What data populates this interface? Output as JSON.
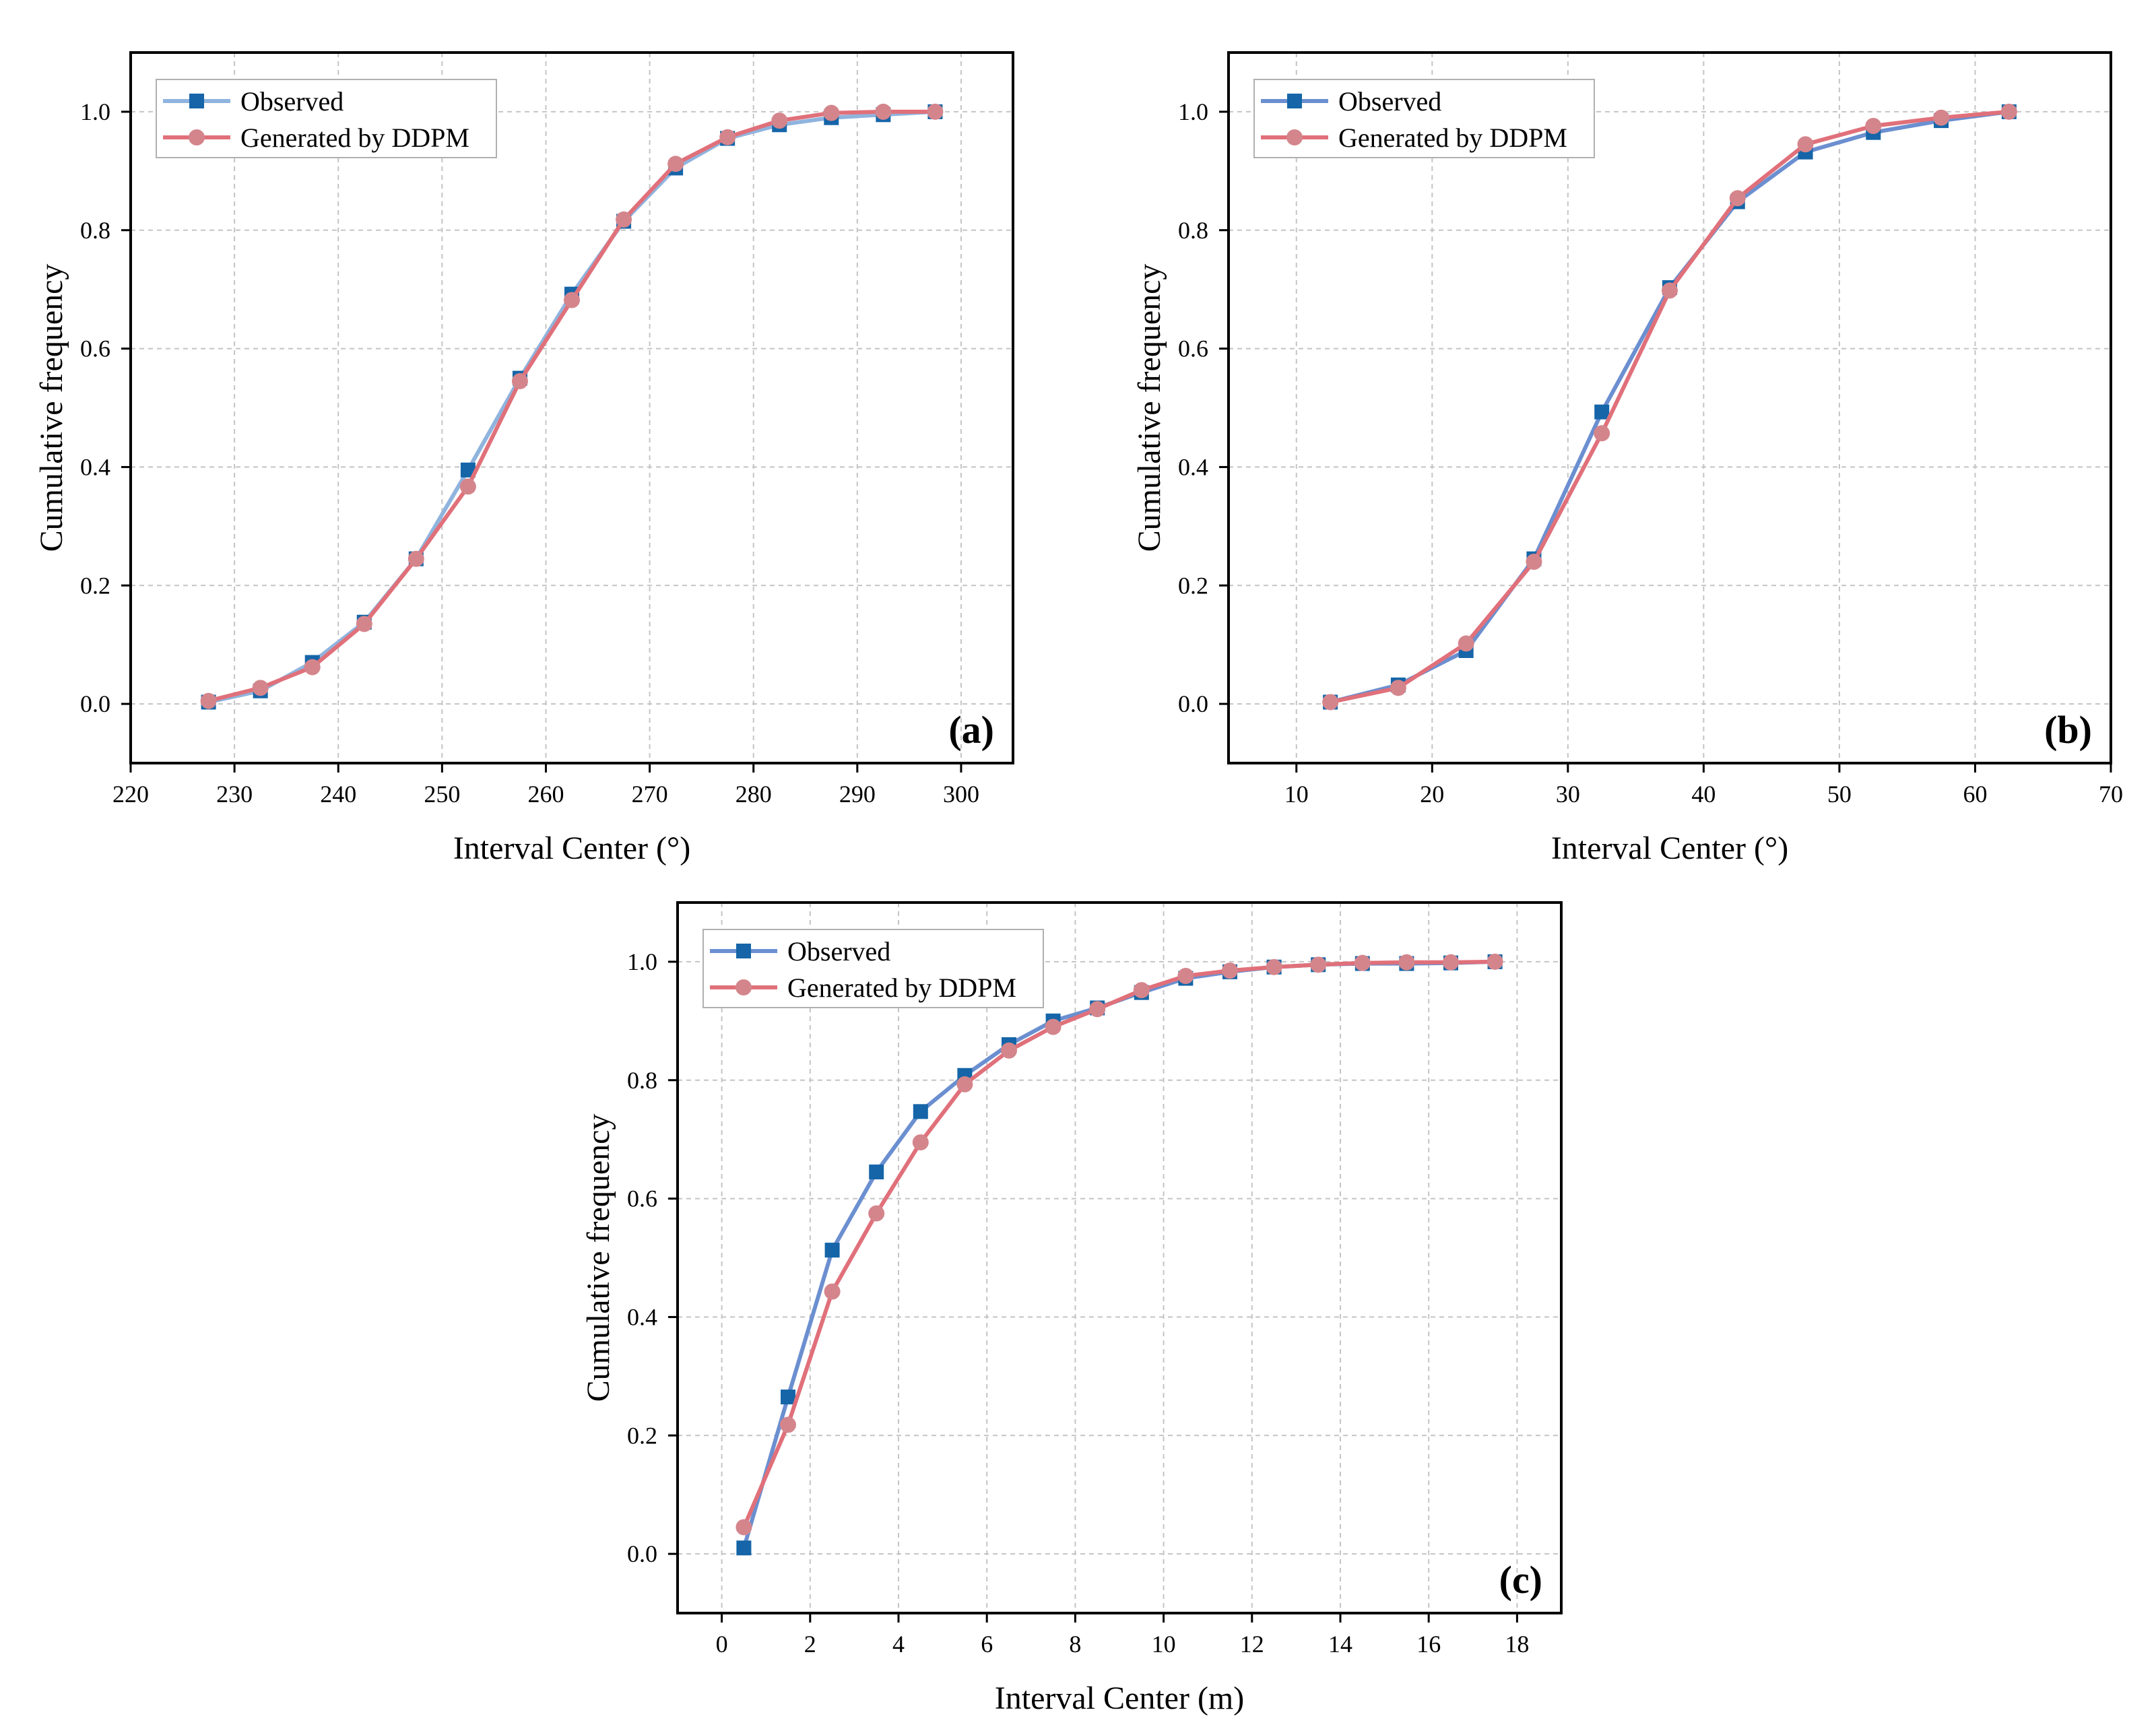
{
  "colors": {
    "observed_line_a": "#8fb4de",
    "observed_line": "#6b8fd0",
    "observed_marker": "#1565a8",
    "generated_line": "#e0707a",
    "generated_marker": "#d4858c"
  },
  "chart_data": [
    {
      "id": "a",
      "type": "line",
      "panel_label": "(a)",
      "xlabel": "Interval Center (°)",
      "ylabel": "Cumulative frequency",
      "xlim": [
        220,
        305
      ],
      "ylim": [
        -0.1,
        1.1
      ],
      "xticks": [
        220,
        230,
        240,
        250,
        260,
        270,
        280,
        290,
        300
      ],
      "xtick_labels": [
        "220",
        "230",
        "240",
        "250",
        "260",
        "270",
        "280",
        "290",
        "300"
      ],
      "yticks": [
        0,
        0.2,
        0.4,
        0.6,
        0.8,
        1.0
      ],
      "ytick_labels": [
        "0.0",
        "0.2",
        "0.4",
        "0.6",
        "0.8",
        "1.0"
      ],
      "grid": true,
      "legend": "top-left",
      "x": [
        227.5,
        232.5,
        237.5,
        242.5,
        247.5,
        252.5,
        257.5,
        262.5,
        267.5,
        272.5,
        277.5,
        282.5,
        287.5,
        292.5,
        297.5
      ],
      "series": [
        {
          "name": "Observed",
          "marker": "square",
          "values": [
            0.003,
            0.022,
            0.07,
            0.138,
            0.245,
            0.395,
            0.55,
            0.692,
            0.815,
            0.905,
            0.955,
            0.978,
            0.99,
            0.995,
            1.0
          ]
        },
        {
          "name": "Generated by DDPM",
          "marker": "circle",
          "values": [
            0.005,
            0.027,
            0.062,
            0.135,
            0.245,
            0.367,
            0.545,
            0.682,
            0.818,
            0.912,
            0.957,
            0.985,
            0.998,
            1.0,
            1.0
          ]
        }
      ]
    },
    {
      "id": "b",
      "type": "line",
      "panel_label": "(b)",
      "xlabel": "Interval Center (°)",
      "ylabel": "Cumulative frequency",
      "xlim": [
        5,
        70
      ],
      "ylim": [
        -0.1,
        1.1
      ],
      "xticks": [
        10,
        20,
        30,
        40,
        50,
        60,
        70
      ],
      "xtick_labels": [
        "10",
        "20",
        "30",
        "40",
        "50",
        "60",
        "70"
      ],
      "yticks": [
        0,
        0.2,
        0.4,
        0.6,
        0.8,
        1.0
      ],
      "ytick_labels": [
        "0.0",
        "0.2",
        "0.4",
        "0.6",
        "0.8",
        "1.0"
      ],
      "grid": true,
      "legend": "top-left",
      "x": [
        12.5,
        17.5,
        22.5,
        27.5,
        32.5,
        37.5,
        42.5,
        47.5,
        52.5,
        57.5,
        62.5
      ],
      "series": [
        {
          "name": "Observed",
          "marker": "square",
          "values": [
            0.003,
            0.032,
            0.09,
            0.245,
            0.493,
            0.703,
            0.848,
            0.932,
            0.965,
            0.985,
            1.0
          ]
        },
        {
          "name": "Generated by DDPM",
          "marker": "circle",
          "values": [
            0.003,
            0.027,
            0.102,
            0.24,
            0.457,
            0.698,
            0.854,
            0.945,
            0.976,
            0.99,
            1.0
          ]
        }
      ]
    },
    {
      "id": "c",
      "type": "line",
      "panel_label": "(c)",
      "xlabel": "Interval Center (m)",
      "ylabel": "Cumulative frequency",
      "xlim": [
        -1,
        19
      ],
      "ylim": [
        -0.1,
        1.1
      ],
      "xticks": [
        0,
        2,
        4,
        6,
        8,
        10,
        12,
        14,
        16,
        18
      ],
      "xtick_labels": [
        "0",
        "2",
        "4",
        "6",
        "8",
        "10",
        "12",
        "14",
        "16",
        "18"
      ],
      "yticks": [
        0,
        0.2,
        0.4,
        0.6,
        0.8,
        1.0
      ],
      "ytick_labels": [
        "0.0",
        "0.2",
        "0.4",
        "0.6",
        "0.8",
        "1.0"
      ],
      "grid": true,
      "legend": "top-left",
      "x": [
        0.5,
        1.5,
        2.5,
        3.5,
        4.5,
        5.5,
        6.5,
        7.5,
        8.5,
        9.5,
        10.5,
        11.5,
        12.5,
        13.5,
        14.5,
        15.5,
        16.5,
        17.5
      ],
      "series": [
        {
          "name": "Observed",
          "marker": "square",
          "values": [
            0.01,
            0.265,
            0.513,
            0.645,
            0.747,
            0.808,
            0.86,
            0.9,
            0.922,
            0.948,
            0.972,
            0.983,
            0.991,
            0.995,
            0.997,
            0.997,
            0.998,
            1.0
          ]
        },
        {
          "name": "Generated by DDPM",
          "marker": "circle",
          "values": [
            0.045,
            0.218,
            0.443,
            0.575,
            0.695,
            0.793,
            0.85,
            0.89,
            0.92,
            0.952,
            0.976,
            0.985,
            0.991,
            0.995,
            0.998,
            0.999,
            0.999,
            1.0
          ]
        }
      ]
    }
  ]
}
